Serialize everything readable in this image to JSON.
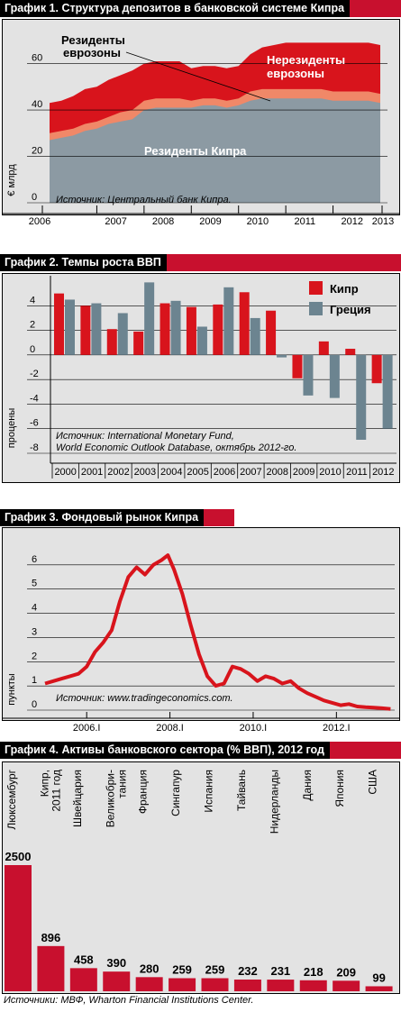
{
  "charts": [
    {
      "id": "deposits",
      "title": "График 1. Структура депозитов в банковской системе Кипра",
      "type": "area",
      "ylabel": "€ млрд",
      "ylim": [
        0,
        75
      ],
      "yticks": [
        0,
        20,
        40,
        60
      ],
      "xticks": [
        "2006",
        "2007",
        "2008",
        "2009",
        "2010",
        "2011",
        "2012",
        "2013"
      ],
      "source": "Источник: Центральный банк Кипра.",
      "labels": {
        "cyprus": "Резиденты Кипра",
        "euro1": "Резиденты",
        "euro2": "еврозоны",
        "nonres1": "Нерезиденты",
        "nonres2": "еврозоны"
      },
      "colors": {
        "cyprus": "#8c9aa3",
        "euro": "#f08868",
        "nonres": "#d8141c"
      },
      "x": [
        2006.0,
        2006.25,
        2006.5,
        2006.75,
        2007.0,
        2007.25,
        2007.5,
        2007.75,
        2008.0,
        2008.25,
        2008.5,
        2008.75,
        2009.0,
        2009.25,
        2009.5,
        2009.75,
        2010.0,
        2010.25,
        2010.5,
        2010.75,
        2011.0,
        2011.25,
        2011.5,
        2011.75,
        2012.0,
        2012.25,
        2012.5,
        2012.75,
        2013.0
      ],
      "series": [
        {
          "name": "Резиденты Кипра",
          "values": [
            27,
            28,
            29,
            31,
            32,
            34,
            35,
            36,
            40,
            41,
            41,
            41,
            41,
            42,
            42,
            41,
            42,
            44,
            45,
            45,
            45,
            45,
            45,
            45,
            44,
            44,
            44,
            44,
            43
          ]
        },
        {
          "name": "Резиденты еврозоны",
          "values": [
            3,
            3,
            3,
            3,
            3,
            3,
            4,
            4,
            4,
            4,
            4,
            4,
            3,
            3,
            3,
            3,
            3,
            4,
            4,
            4,
            4,
            4,
            4,
            4,
            4,
            4,
            4,
            4,
            4
          ]
        },
        {
          "name": "Нерезиденты еврозоны",
          "values": [
            13,
            13,
            14,
            15,
            15,
            16,
            16,
            17,
            16,
            16,
            16,
            16,
            14,
            14,
            14,
            14,
            14,
            16,
            18,
            19,
            20,
            20,
            20,
            20,
            21,
            21,
            21,
            21,
            21
          ]
        }
      ]
    },
    {
      "id": "gdp",
      "title": "График 2. Темпы роста ВВП",
      "type": "bar",
      "ylabel": "процены",
      "ylim": [
        -8,
        6
      ],
      "yticks": [
        -8,
        -6,
        -4,
        -2,
        0,
        2,
        4
      ],
      "categories": [
        "2000",
        "2001",
        "2002",
        "2003",
        "2004",
        "2005",
        "2006",
        "2007",
        "2008",
        "2009",
        "2010",
        "2011",
        "2012"
      ],
      "source1": "Источник: International Monetary Fund,",
      "source2": "World Economic Outlook Database, октябрь 2012-го.",
      "colors": {
        "cyprus": "#d8141c",
        "greece": "#6c8490"
      },
      "series": [
        {
          "name": "Кипр",
          "values": [
            5.0,
            4.0,
            2.1,
            1.9,
            4.2,
            3.9,
            4.1,
            5.1,
            3.6,
            -1.9,
            1.1,
            0.5,
            -2.3
          ]
        },
        {
          "name": "Греция",
          "values": [
            4.5,
            4.2,
            3.4,
            5.9,
            4.4,
            2.3,
            5.5,
            3.0,
            -0.2,
            -3.3,
            -3.5,
            -6.9,
            -6.0
          ]
        }
      ]
    },
    {
      "id": "stock",
      "title": "График 3. Фондовый рынок Кипра",
      "type": "line",
      "ylabel": "пункты",
      "ylim": [
        0,
        7
      ],
      "yticks": [
        0,
        1,
        2,
        3,
        4,
        5,
        6
      ],
      "xticks": [
        "2006.I",
        "2008.I",
        "2010.I",
        "2012.I"
      ],
      "xtick_values": [
        2006.0,
        2008.0,
        2010.0,
        2012.0
      ],
      "xlim": [
        2005.0,
        2013.4
      ],
      "source": "Источник: www.tradingeconomics.com.",
      "color": "#d8141c",
      "x": [
        2005.0,
        2005.2,
        2005.4,
        2005.6,
        2005.8,
        2006.0,
        2006.2,
        2006.4,
        2006.6,
        2006.8,
        2007.0,
        2007.2,
        2007.4,
        2007.6,
        2007.8,
        2007.95,
        2008.1,
        2008.3,
        2008.5,
        2008.7,
        2008.9,
        2009.1,
        2009.3,
        2009.5,
        2009.7,
        2009.9,
        2010.1,
        2010.3,
        2010.5,
        2010.7,
        2010.9,
        2011.1,
        2011.3,
        2011.5,
        2011.7,
        2011.9,
        2012.1,
        2012.3,
        2012.5,
        2012.7,
        2012.9,
        2013.1,
        2013.3
      ],
      "values": [
        1.1,
        1.2,
        1.3,
        1.4,
        1.5,
        1.8,
        2.4,
        2.8,
        3.3,
        4.5,
        5.5,
        5.9,
        5.6,
        6.0,
        6.2,
        6.4,
        5.8,
        4.8,
        3.5,
        2.3,
        1.4,
        1.0,
        1.1,
        1.8,
        1.7,
        1.5,
        1.2,
        1.4,
        1.3,
        1.1,
        1.2,
        0.9,
        0.7,
        0.55,
        0.4,
        0.3,
        0.2,
        0.25,
        0.15,
        0.12,
        0.1,
        0.08,
        0.05
      ]
    },
    {
      "id": "assets",
      "title": "График 4. Активы банковского сектора (% ВВП), 2012 год",
      "type": "bar",
      "color": "#c8102e",
      "ymax": 2500,
      "categories": [
        "Люксембург",
        "Кипр,|2011 год",
        "Швейцария",
        "Великобри-|тания",
        "Франция",
        "Сингапур",
        "Испания",
        "Тайвань",
        "Нидерланды",
        "Дания",
        "Япония",
        "США"
      ],
      "values": [
        2500,
        896,
        458,
        390,
        280,
        259,
        259,
        232,
        231,
        218,
        209,
        99
      ],
      "value_labels": [
        "2500",
        "896",
        "458",
        "390",
        "280",
        "259",
        "259",
        "232",
        "231",
        "218",
        "209",
        "99"
      ]
    }
  ],
  "footer": "Источники: МВФ, Wharton Financial Institutions Center."
}
